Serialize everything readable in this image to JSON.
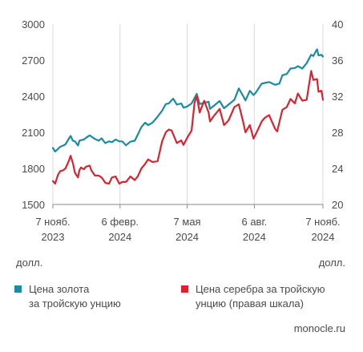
{
  "chart_data": {
    "type": "line",
    "x_ticks": [
      "2023-11-07",
      "2024-02-06",
      "2024-05-07",
      "2024-08-06",
      "2024-11-07"
    ],
    "x_tick_labels": [
      {
        "day": "7 нояб.",
        "year": "2023"
      },
      {
        "day": "6 февр.",
        "year": "2024"
      },
      {
        "day": "7 мая",
        "year": "2024"
      },
      {
        "day": "6 авг.",
        "year": "2024"
      },
      {
        "day": "7 нояб.",
        "year": "2024"
      }
    ],
    "xlim": [
      "2023-11-07",
      "2024-11-07"
    ],
    "y_left": {
      "ylim": [
        1500,
        3000
      ],
      "ticks": [
        "1500",
        "1800",
        "2100",
        "2400",
        "2700",
        "3000"
      ],
      "unit": "долл."
    },
    "y_right": {
      "ylim": [
        20,
        40
      ],
      "ticks": [
        "20",
        "24",
        "28",
        "32",
        "36",
        "40"
      ],
      "unit": "долл."
    },
    "grid": "vertical",
    "series": [
      {
        "name": "Цена золота\nза тройскую унцию",
        "axis": "left",
        "color": "#1a8ba3",
        "points": [
          [
            "2023-11-07",
            1970
          ],
          [
            "2023-11-10",
            1940
          ],
          [
            "2023-11-14",
            1962
          ],
          [
            "2023-11-17",
            1980
          ],
          [
            "2023-11-21",
            1990
          ],
          [
            "2023-11-24",
            2000
          ],
          [
            "2023-11-28",
            2040
          ],
          [
            "2023-12-01",
            2070
          ],
          [
            "2023-12-04",
            2030
          ],
          [
            "2023-12-07",
            2025
          ],
          [
            "2023-12-11",
            1990
          ],
          [
            "2023-12-13",
            2030
          ],
          [
            "2023-12-15",
            2035
          ],
          [
            "2023-12-19",
            2040
          ],
          [
            "2023-12-22",
            2055
          ],
          [
            "2023-12-27",
            2075
          ],
          [
            "2023-12-29",
            2065
          ],
          [
            "2024-01-03",
            2045
          ],
          [
            "2024-01-08",
            2030
          ],
          [
            "2024-01-12",
            2050
          ],
          [
            "2024-01-17",
            2010
          ],
          [
            "2024-01-22",
            2025
          ],
          [
            "2024-01-26",
            2018
          ],
          [
            "2024-01-31",
            2040
          ],
          [
            "2024-02-05",
            2025
          ],
          [
            "2024-02-09",
            2025
          ],
          [
            "2024-02-14",
            1992
          ],
          [
            "2024-02-20",
            2022
          ],
          [
            "2024-02-26",
            2030
          ],
          [
            "2024-03-01",
            2080
          ],
          [
            "2024-03-06",
            2145
          ],
          [
            "2024-03-11",
            2180
          ],
          [
            "2024-03-15",
            2160
          ],
          [
            "2024-03-21",
            2180
          ],
          [
            "2024-03-28",
            2230
          ],
          [
            "2024-04-03",
            2280
          ],
          [
            "2024-04-08",
            2335
          ],
          [
            "2024-04-12",
            2340
          ],
          [
            "2024-04-18",
            2380
          ],
          [
            "2024-04-23",
            2330
          ],
          [
            "2024-04-29",
            2340
          ],
          [
            "2024-05-02",
            2305
          ],
          [
            "2024-05-07",
            2315
          ],
          [
            "2024-05-13",
            2340
          ],
          [
            "2024-05-20",
            2420
          ],
          [
            "2024-05-24",
            2335
          ],
          [
            "2024-05-30",
            2345
          ],
          [
            "2024-06-05",
            2355
          ],
          [
            "2024-06-07",
            2295
          ],
          [
            "2024-06-12",
            2320
          ],
          [
            "2024-06-20",
            2360
          ],
          [
            "2024-06-26",
            2300
          ],
          [
            "2024-07-02",
            2330
          ],
          [
            "2024-07-10",
            2370
          ],
          [
            "2024-07-16",
            2465
          ],
          [
            "2024-07-22",
            2400
          ],
          [
            "2024-07-25",
            2365
          ],
          [
            "2024-07-31",
            2445
          ],
          [
            "2024-08-05",
            2410
          ],
          [
            "2024-08-08",
            2430
          ],
          [
            "2024-08-16",
            2505
          ],
          [
            "2024-08-20",
            2510
          ],
          [
            "2024-08-26",
            2518
          ],
          [
            "2024-09-03",
            2495
          ],
          [
            "2024-09-09",
            2505
          ],
          [
            "2024-09-13",
            2575
          ],
          [
            "2024-09-19",
            2585
          ],
          [
            "2024-09-24",
            2630
          ],
          [
            "2024-09-30",
            2635
          ],
          [
            "2024-10-04",
            2650
          ],
          [
            "2024-10-10",
            2630
          ],
          [
            "2024-10-16",
            2675
          ],
          [
            "2024-10-22",
            2745
          ],
          [
            "2024-10-25",
            2735
          ],
          [
            "2024-10-30",
            2790
          ],
          [
            "2024-11-01",
            2740
          ],
          [
            "2024-11-05",
            2745
          ],
          [
            "2024-11-07",
            2730
          ]
        ]
      },
      {
        "name": "Цена серебра за тройскую\nунцию (правая шкала)",
        "axis": "right",
        "color": "#d9232e",
        "points": [
          [
            "2023-11-07",
            22.6
          ],
          [
            "2023-11-10",
            22.3
          ],
          [
            "2023-11-14",
            23.3
          ],
          [
            "2023-11-17",
            23.7
          ],
          [
            "2023-11-21",
            23.8
          ],
          [
            "2023-11-24",
            24.0
          ],
          [
            "2023-11-28",
            24.7
          ],
          [
            "2023-12-01",
            25.4
          ],
          [
            "2023-12-04",
            24.6
          ],
          [
            "2023-12-07",
            23.5
          ],
          [
            "2023-12-11",
            23.0
          ],
          [
            "2023-12-13",
            23.8
          ],
          [
            "2023-12-15",
            24.1
          ],
          [
            "2023-12-19",
            23.9
          ],
          [
            "2023-12-22",
            24.2
          ],
          [
            "2023-12-27",
            24.3
          ],
          [
            "2023-12-29",
            23.8
          ],
          [
            "2024-01-03",
            23.2
          ],
          [
            "2024-01-08",
            23.2
          ],
          [
            "2024-01-12",
            23.0
          ],
          [
            "2024-01-17",
            22.4
          ],
          [
            "2024-01-22",
            22.3
          ],
          [
            "2024-01-26",
            23.0
          ],
          [
            "2024-01-31",
            23.1
          ],
          [
            "2024-02-05",
            22.3
          ],
          [
            "2024-02-09",
            22.5
          ],
          [
            "2024-02-14",
            22.5
          ],
          [
            "2024-02-20",
            23.1
          ],
          [
            "2024-02-26",
            22.7
          ],
          [
            "2024-03-01",
            23.1
          ],
          [
            "2024-03-06",
            24.0
          ],
          [
            "2024-03-11",
            24.5
          ],
          [
            "2024-03-15",
            25.0
          ],
          [
            "2024-03-21",
            24.7
          ],
          [
            "2024-03-28",
            24.8
          ],
          [
            "2024-04-03",
            27.0
          ],
          [
            "2024-04-08",
            28.0
          ],
          [
            "2024-04-12",
            28.3
          ],
          [
            "2024-04-16",
            28.2
          ],
          [
            "2024-04-23",
            26.8
          ],
          [
            "2024-04-29",
            27.1
          ],
          [
            "2024-05-02",
            26.6
          ],
          [
            "2024-05-07",
            27.4
          ],
          [
            "2024-05-13",
            28.2
          ],
          [
            "2024-05-17",
            31.3
          ],
          [
            "2024-05-20",
            32.0
          ],
          [
            "2024-05-24",
            30.2
          ],
          [
            "2024-05-30",
            31.5
          ],
          [
            "2024-06-05",
            30.2
          ],
          [
            "2024-06-07",
            29.2
          ],
          [
            "2024-06-12",
            29.8
          ],
          [
            "2024-06-20",
            30.6
          ],
          [
            "2024-06-26",
            28.8
          ],
          [
            "2024-07-02",
            29.3
          ],
          [
            "2024-07-10",
            30.8
          ],
          [
            "2024-07-16",
            31.1
          ],
          [
            "2024-07-22",
            29.1
          ],
          [
            "2024-07-25",
            28.0
          ],
          [
            "2024-07-31",
            28.8
          ],
          [
            "2024-08-05",
            27.3
          ],
          [
            "2024-08-08",
            27.8
          ],
          [
            "2024-08-16",
            29.2
          ],
          [
            "2024-08-20",
            29.6
          ],
          [
            "2024-08-26",
            29.9
          ],
          [
            "2024-09-03",
            28.4
          ],
          [
            "2024-09-06",
            28.1
          ],
          [
            "2024-09-13",
            30.5
          ],
          [
            "2024-09-19",
            30.8
          ],
          [
            "2024-09-24",
            31.7
          ],
          [
            "2024-09-30",
            31.2
          ],
          [
            "2024-10-04",
            32.3
          ],
          [
            "2024-10-10",
            31.5
          ],
          [
            "2024-10-16",
            31.6
          ],
          [
            "2024-10-22",
            34.8
          ],
          [
            "2024-10-25",
            33.8
          ],
          [
            "2024-10-30",
            33.9
          ],
          [
            "2024-11-01",
            32.5
          ],
          [
            "2024-11-05",
            32.6
          ],
          [
            "2024-11-07",
            31.6
          ]
        ]
      }
    ],
    "legend_position": "bottom"
  },
  "footer": {
    "left_unit": "долл.",
    "right_unit": "долл.",
    "source": "monocle.ru"
  }
}
